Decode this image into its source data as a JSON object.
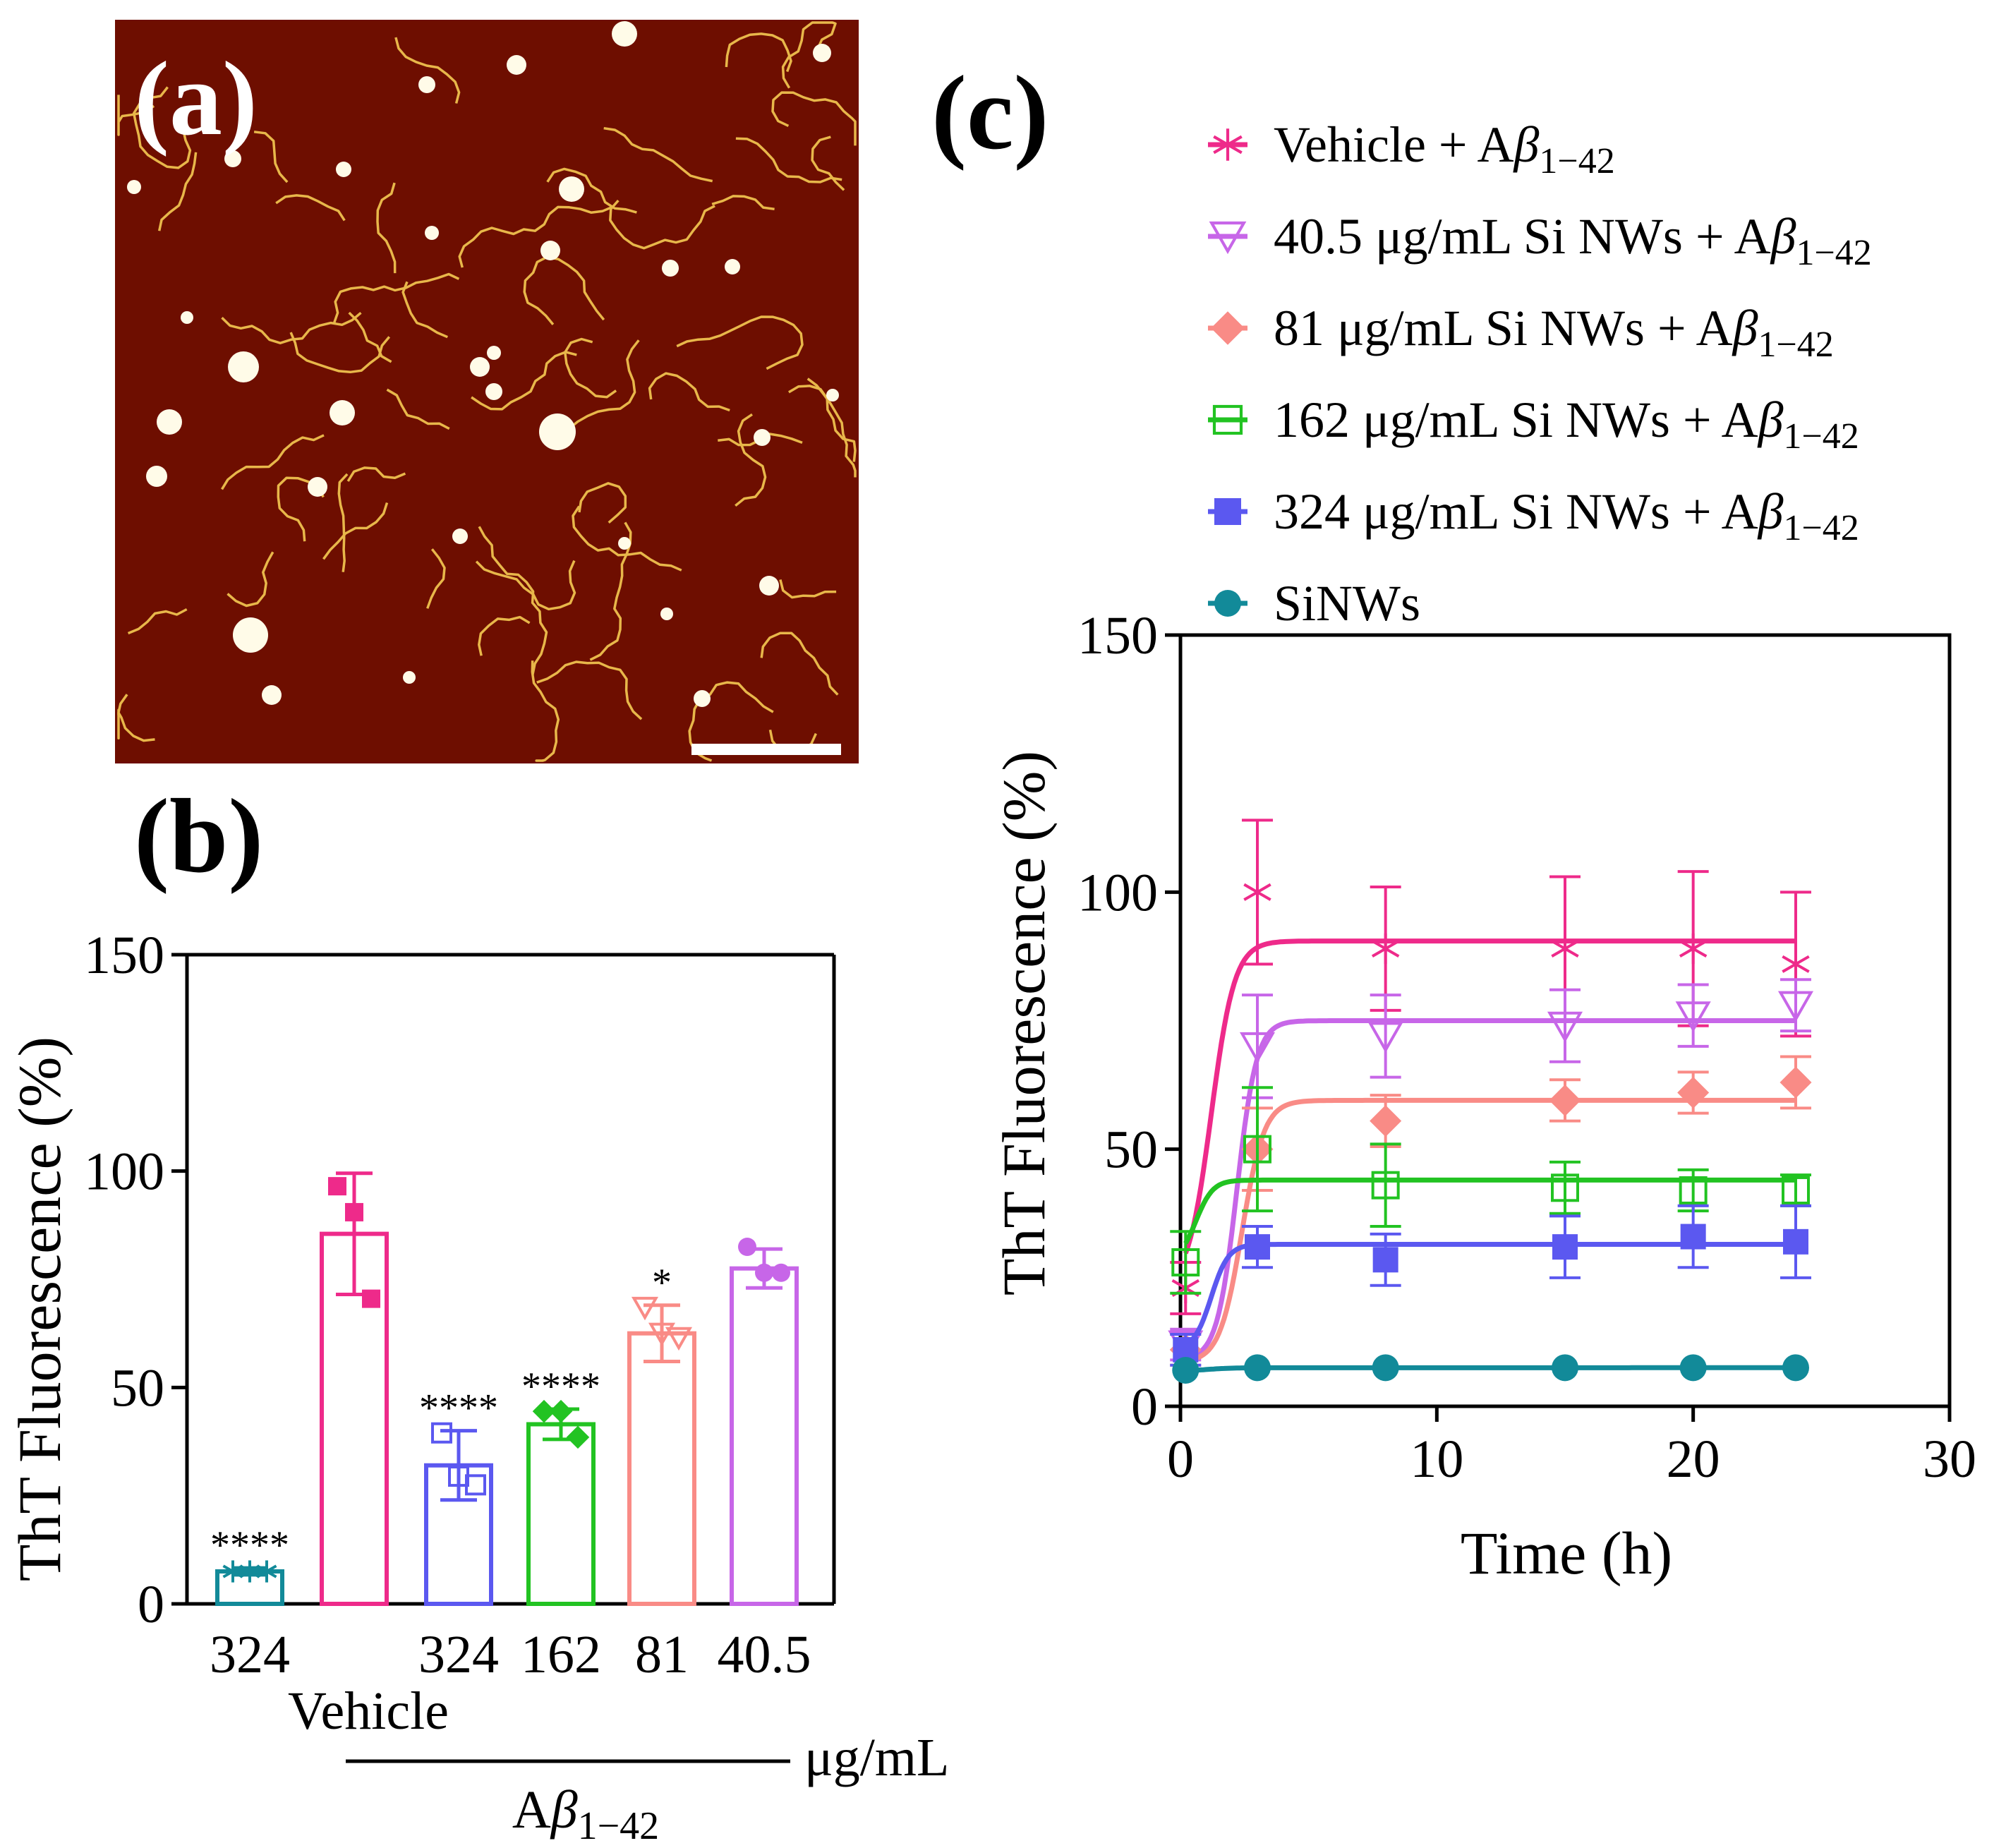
{
  "panel_labels": {
    "a": "(a)",
    "b": "(b)",
    "c": "(c)"
  },
  "colors": {
    "vehicle": "#ee2a8a",
    "nw_40_5": "#c766e8",
    "nw_81": "#f98b86",
    "nw_162": "#22c322",
    "nw_324": "#5b58f0",
    "siNWs": "#128a99",
    "afm_background": "#6e0e00",
    "afm_fibril": "#e8b74a",
    "afm_aggregate": "#fffbe8"
  },
  "afm_image": {
    "icon": "afm-topography-image",
    "scale_bar_icon": "scale-bar"
  },
  "chart_data": [
    {
      "id": "b",
      "type": "bar",
      "title": "",
      "xlabel": "",
      "ylabel": "ThT Fluorescence (%)",
      "ylim": [
        0,
        150
      ],
      "yticks": [
        "0",
        "50",
        "100",
        "150"
      ],
      "categories": [
        "324",
        "Vehicle",
        "324",
        "162",
        "81",
        "40.5"
      ],
      "values": [
        7.5,
        85.5,
        32,
        41.5,
        62.5,
        77.5
      ],
      "errors": [
        0.8,
        14,
        8,
        3.5,
        6.5,
        4.5
      ],
      "points": [
        [
          7.5,
          7.5,
          7.5
        ],
        [
          96.5,
          90.5,
          70.5
        ],
        [
          39.5,
          29.5,
          27.5
        ],
        [
          44.5,
          44.5,
          38.5
        ],
        [
          68.5,
          62.5,
          61.5
        ],
        [
          82.5,
          76.5,
          76.5
        ]
      ],
      "markers": [
        "star",
        "square",
        "open-square",
        "diamond",
        "open-triangle-down",
        "circle"
      ],
      "series_colors": [
        "#128a99",
        "#ee2a8a",
        "#5b58f0",
        "#22c322",
        "#f98b86",
        "#c766e8"
      ],
      "significance": [
        "****",
        "",
        "****",
        "****",
        "*",
        ""
      ],
      "group_label": {
        "prefix": "A",
        "beta": "β",
        "subscript": "1−42"
      },
      "unit_label": "μg/mL"
    },
    {
      "id": "c",
      "type": "line",
      "title": "",
      "xlabel": "Time (h)",
      "ylabel": "ThT Fluorescence (%)",
      "xlim": [
        0,
        30
      ],
      "ylim": [
        0,
        150
      ],
      "xticks": [
        "0",
        "10",
        "20",
        "30"
      ],
      "yticks": [
        "0",
        "50",
        "100",
        "150"
      ],
      "x": [
        0.2,
        3,
        8,
        15,
        20,
        24
      ],
      "legend_position": "top",
      "series": [
        {
          "key": "vehicle",
          "name": "Vehicle + A",
          "sub": "1−42",
          "marker": "asterisk",
          "color": "#ee2a8a",
          "values": [
            23,
            100,
            89,
            89,
            89,
            86
          ],
          "errors": [
            5,
            14,
            12,
            14,
            15,
            14
          ],
          "fit": {
            "plateau": 90.5,
            "y0": 23,
            "k": 2.2,
            "x0": 1.2
          }
        },
        {
          "key": "nw_40_5",
          "name": "40.5 μg/mL Si NWs + A",
          "sub": "1−42",
          "marker": "open-triangle-down",
          "color": "#c766e8",
          "values": [
            12,
            70,
            72,
            74,
            76,
            78
          ],
          "errors": [
            3,
            10,
            8,
            7,
            6,
            5
          ],
          "fit": {
            "plateau": 75,
            "y0": 9,
            "k": 2.6,
            "x0": 2.2
          }
        },
        {
          "key": "nw_81",
          "name": "81 μg/mL Si NWs + A",
          "sub": "1−42",
          "marker": "diamond",
          "color": "#f98b86",
          "values": [
            11,
            50,
            55.5,
            59.5,
            61,
            63
          ],
          "errors": [
            3,
            8,
            5,
            4,
            4,
            5
          ],
          "fit": {
            "plateau": 59.5,
            "y0": 8.5,
            "k": 2.3,
            "x0": 2.4
          }
        },
        {
          "key": "nw_162",
          "name": "162 μg/mL Si NWs + A",
          "sub": "1−42",
          "marker": "open-square",
          "color": "#22c322",
          "values": [
            28,
            50,
            43,
            42.5,
            42,
            42
          ],
          "errors": [
            6,
            12,
            8,
            5,
            4,
            3
          ],
          "fit": {
            "plateau": 44,
            "y0": 28,
            "k": 3.0,
            "x0": 0.6
          }
        },
        {
          "key": "nw_324",
          "name": "324 μg/mL Si NWs + A",
          "sub": "1−42",
          "marker": "filled-square",
          "color": "#5b58f0",
          "values": [
            11,
            31,
            28.5,
            31,
            33,
            32
          ],
          "errors": [
            3,
            4,
            5,
            6,
            6,
            7
          ],
          "fit": {
            "plateau": 31.5,
            "y0": 11,
            "k": 3.0,
            "x0": 1.2
          }
        },
        {
          "key": "siNWs",
          "name": "SiNWs",
          "sub": "",
          "marker": "filled-circle",
          "color": "#128a99",
          "values": [
            7,
            7.5,
            7.5,
            7.5,
            7.5,
            7.5
          ],
          "errors": [
            0.5,
            0.5,
            0.5,
            0.5,
            0.5,
            0.5
          ],
          "fit": {
            "plateau": 7.5,
            "y0": 6.8,
            "k": 2.0,
            "x0": 1.0
          }
        }
      ]
    }
  ]
}
